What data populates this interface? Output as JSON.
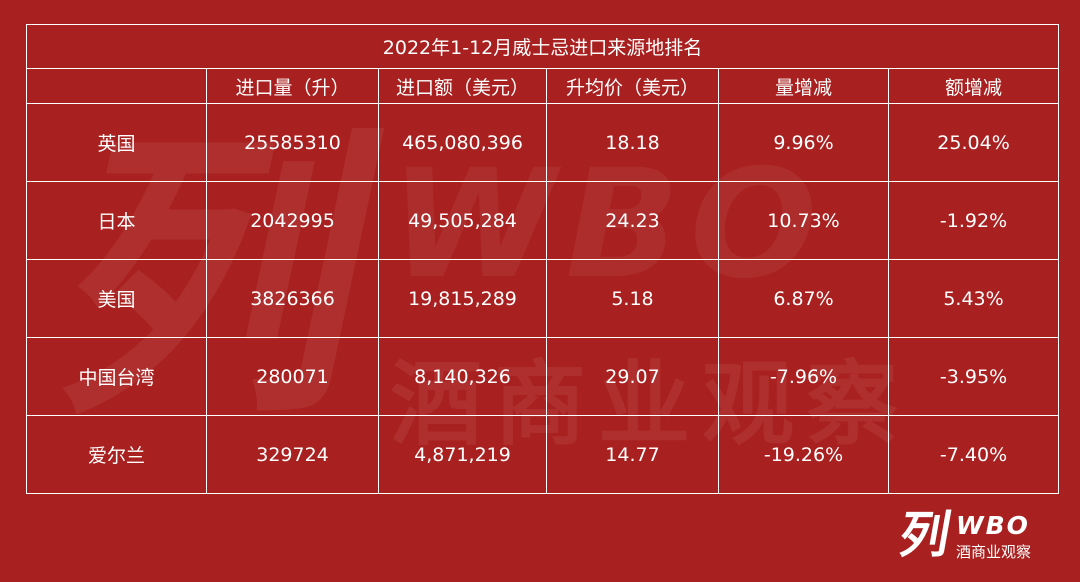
{
  "colors": {
    "background": "#a8201f",
    "grid_line": "#ffffff",
    "text": "#ffffff"
  },
  "watermark": {
    "mark": "列",
    "letters": "WBO",
    "text": "酒商业观察"
  },
  "logo": {
    "mark": "列",
    "letters": "WBO",
    "text": "酒商业观察"
  },
  "chart_data": {
    "type": "table",
    "title": "2022年1-12月威士忌进口来源地排名",
    "columns": [
      "",
      "进口量（升）",
      "进口额（美元）",
      "升均价（美元）",
      "量增减",
      "额增减"
    ],
    "rows": [
      [
        "英国",
        "25585310",
        "465,080,396",
        "18.18",
        "9.96%",
        "25.04%"
      ],
      [
        "日本",
        "2042995",
        "49,505,284",
        "24.23",
        "10.73%",
        "-1.92%"
      ],
      [
        "美国",
        "3826366",
        "19,815,289",
        "5.18",
        "6.87%",
        "5.43%"
      ],
      [
        "中国台湾",
        "280071",
        "8,140,326",
        "29.07",
        "-7.96%",
        "-3.95%"
      ],
      [
        "爱尔兰",
        "329724",
        "4,871,219",
        "14.77",
        "-19.26%",
        "-7.40%"
      ]
    ]
  }
}
